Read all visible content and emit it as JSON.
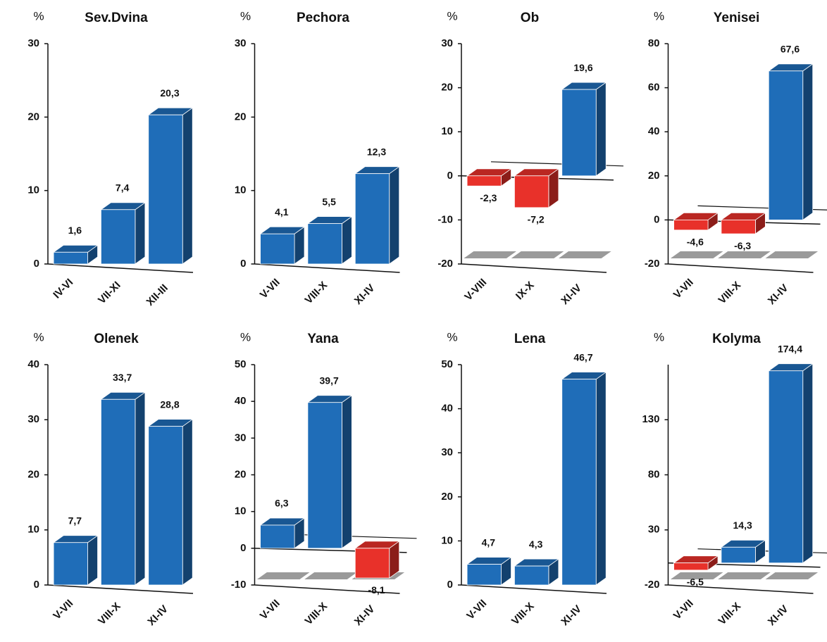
{
  "chart_data": [
    {
      "type": "bar",
      "title": "Sev.Dvina",
      "ylabel": "%",
      "categories": [
        "IV-VI",
        "VII-XI",
        "XII-III"
      ],
      "values": [
        1.6,
        7.4,
        20.3
      ],
      "value_labels": [
        "1,6",
        "7,4",
        "20,3"
      ],
      "ylim": [
        0,
        30
      ],
      "yticks": [
        0,
        10,
        20,
        30
      ],
      "color": "#1f6db8",
      "negative_color": "#e8312a"
    },
    {
      "type": "bar",
      "title": "Pechora",
      "ylabel": "%",
      "categories": [
        "V-VII",
        "VIII-X",
        "XI-IV"
      ],
      "values": [
        4.1,
        5.5,
        12.3
      ],
      "value_labels": [
        "4,1",
        "5,5",
        "12,3"
      ],
      "ylim": [
        0,
        30
      ],
      "yticks": [
        0,
        10,
        20,
        30
      ],
      "color": "#1f6db8",
      "negative_color": "#e8312a"
    },
    {
      "type": "bar",
      "title": "Ob",
      "ylabel": "%",
      "categories": [
        "V-VIII",
        "IX-X",
        "XI-IV"
      ],
      "values": [
        -2.3,
        -7.2,
        19.6
      ],
      "value_labels": [
        "-2,3",
        "-7,2",
        "19,6"
      ],
      "ylim": [
        -20,
        30
      ],
      "yticks": [
        -20,
        -10,
        0,
        10,
        20,
        30
      ],
      "color": "#1f6db8",
      "negative_color": "#e8312a"
    },
    {
      "type": "bar",
      "title": "Yenisei",
      "ylabel": "%",
      "categories": [
        "V-VII",
        "VIII-X",
        "XI-IV"
      ],
      "values": [
        -4.6,
        -6.3,
        67.6
      ],
      "value_labels": [
        "-4,6",
        "-6,3",
        "67,6"
      ],
      "ylim": [
        -20,
        80
      ],
      "yticks": [
        -20,
        0,
        20,
        40,
        60,
        80
      ],
      "color": "#1f6db8",
      "negative_color": "#e8312a"
    },
    {
      "type": "bar",
      "title": "Olenek",
      "ylabel": "%",
      "categories": [
        "V-VII",
        "VIII-X",
        "XI-IV"
      ],
      "values": [
        7.7,
        33.7,
        28.8
      ],
      "value_labels": [
        "7,7",
        "33,7",
        "28,8"
      ],
      "ylim": [
        0,
        40
      ],
      "yticks": [
        0,
        10,
        20,
        30,
        40
      ],
      "color": "#1f6db8",
      "negative_color": "#e8312a"
    },
    {
      "type": "bar",
      "title": "Yana",
      "ylabel": "%",
      "categories": [
        "V-VII",
        "VIII-X",
        "XI-IV"
      ],
      "values": [
        6.3,
        39.7,
        -8.1
      ],
      "value_labels": [
        "6,3",
        "39,7",
        "-8,1"
      ],
      "ylim": [
        -10,
        50
      ],
      "yticks": [
        -10,
        0,
        10,
        20,
        30,
        40,
        50
      ],
      "color": "#1f6db8",
      "negative_color": "#e8312a"
    },
    {
      "type": "bar",
      "title": "Lena",
      "ylabel": "%",
      "categories": [
        "V-VII",
        "VIII-X",
        "XI-IV"
      ],
      "values": [
        4.7,
        4.3,
        46.7
      ],
      "value_labels": [
        "4,7",
        "4,3",
        "46,7"
      ],
      "ylim": [
        0,
        50
      ],
      "yticks": [
        0,
        10,
        20,
        30,
        40,
        50
      ],
      "color": "#1f6db8",
      "negative_color": "#e8312a"
    },
    {
      "type": "bar",
      "title": "Kolyma",
      "ylabel": "%",
      "categories": [
        "V-VII",
        "VIII-X",
        "XI-IV"
      ],
      "values": [
        -6.5,
        14.3,
        174.4
      ],
      "value_labels": [
        "-6,5",
        "14,3",
        "174,4"
      ],
      "ylim": [
        -20,
        180
      ],
      "yticks": [
        -20,
        30,
        80,
        130
      ],
      "color": "#1f6db8",
      "negative_color": "#e8312a"
    }
  ]
}
